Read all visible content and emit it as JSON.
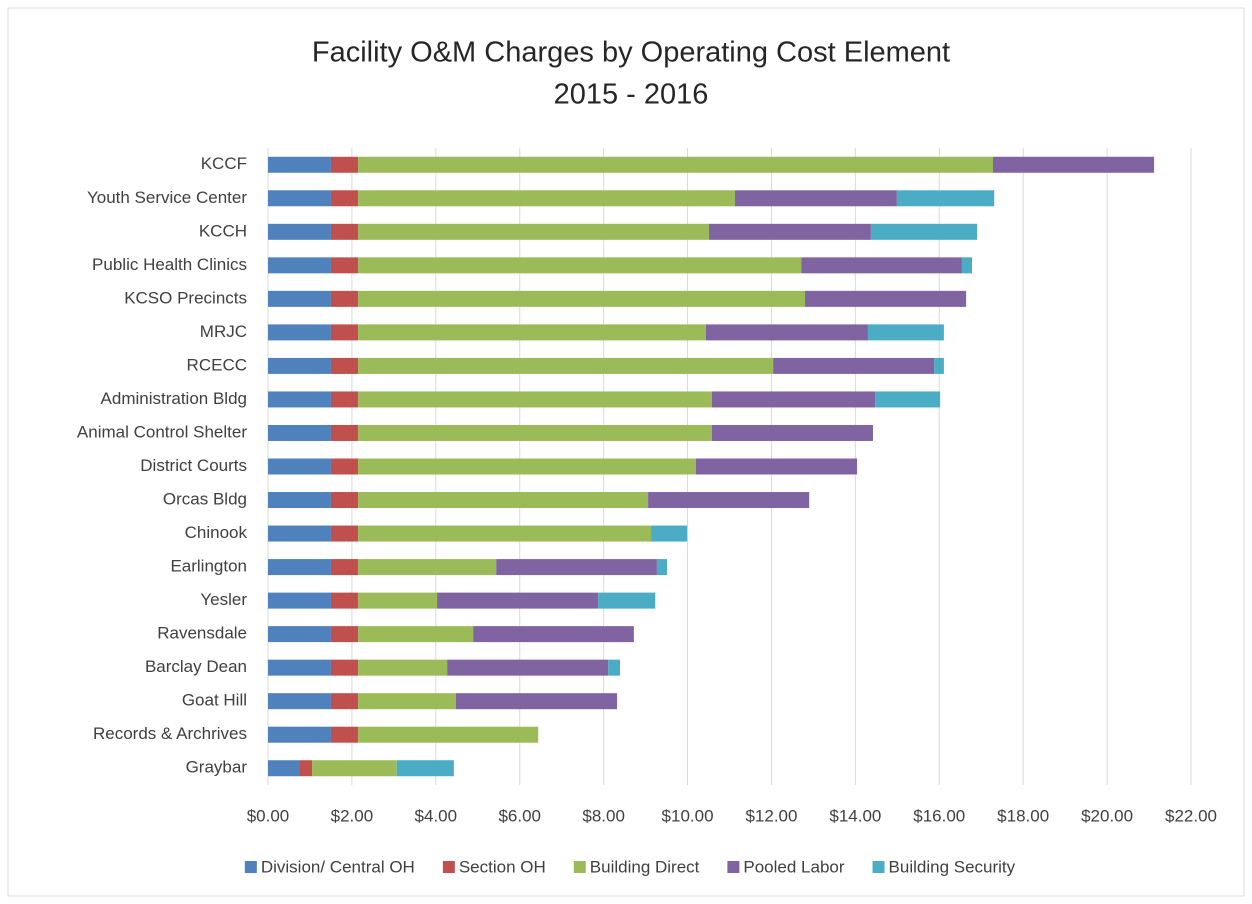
{
  "chart_data": {
    "type": "stacked-barh",
    "title": "Facility O&M Charges by Operating Cost Element",
    "subtitle": "2015 - 2016",
    "categories": [
      "KCCF",
      "Youth Service Center",
      "KCCH",
      "Public Health Clinics",
      "KCSO Precincts",
      "MRJC",
      "RCECC",
      "Administration Bldg",
      "Animal Control Shelter",
      "District Courts",
      "Orcas Bldg",
      "Chinook",
      "Earlington",
      "Yesler",
      "Ravensdale",
      "Barclay Dean",
      "Goat Hill",
      "Records & Archrives",
      "Graybar"
    ],
    "series": [
      {
        "name": "Division/ Central OH",
        "color": "#4f81bd",
        "values": [
          1.5,
          1.5,
          1.5,
          1.5,
          1.5,
          1.5,
          1.5,
          1.5,
          1.5,
          1.5,
          1.5,
          1.5,
          1.5,
          1.5,
          1.5,
          1.5,
          1.5,
          1.5,
          0.74
        ]
      },
      {
        "name": "Section OH",
        "color": "#c0504d",
        "values": [
          0.65,
          0.65,
          0.65,
          0.65,
          0.65,
          0.65,
          0.65,
          0.65,
          0.65,
          0.65,
          0.65,
          0.65,
          0.65,
          0.65,
          0.65,
          0.65,
          0.65,
          0.65,
          0.31
        ]
      },
      {
        "name": "Building Direct",
        "color": "#9bbb59",
        "values": [
          15.13,
          8.98,
          8.36,
          10.56,
          10.65,
          8.29,
          9.89,
          8.43,
          8.43,
          8.05,
          6.91,
          6.98,
          3.29,
          1.88,
          2.74,
          2.12,
          2.33,
          4.29,
          2.02
        ]
      },
      {
        "name": "Pooled Labor",
        "color": "#8064a2",
        "values": [
          3.84,
          3.86,
          3.86,
          3.83,
          3.84,
          3.86,
          3.84,
          3.89,
          3.84,
          3.84,
          3.84,
          null,
          3.83,
          3.84,
          3.83,
          3.84,
          3.84,
          null,
          null
        ]
      },
      {
        "name": "Building Security",
        "color": "#4bacc6",
        "values": [
          null,
          2.32,
          2.53,
          0.24,
          null,
          1.81,
          0.23,
          1.55,
          null,
          null,
          null,
          0.86,
          0.24,
          1.36,
          null,
          0.28,
          null,
          null,
          1.36
        ]
      }
    ],
    "xlim": [
      0,
      22
    ],
    "xticks": [
      {
        "value": 0,
        "label": "$0.00"
      },
      {
        "value": 2,
        "label": "$2.00"
      },
      {
        "value": 4,
        "label": "$4.00"
      },
      {
        "value": 6,
        "label": "$6.00"
      },
      {
        "value": 8,
        "label": "$8.00"
      },
      {
        "value": 10,
        "label": "$10.00"
      },
      {
        "value": 12,
        "label": "$12.00"
      },
      {
        "value": 14,
        "label": "$14.00"
      },
      {
        "value": 16,
        "label": "$16.00"
      },
      {
        "value": 18,
        "label": "$18.00"
      },
      {
        "value": 20,
        "label": "$20.00"
      },
      {
        "value": 22,
        "label": "$22.00"
      }
    ],
    "grid": true,
    "legend": "bottom"
  }
}
